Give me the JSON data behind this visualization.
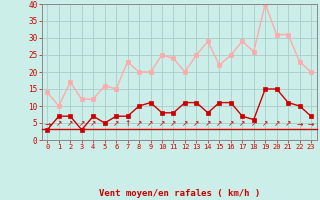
{
  "hours": [
    0,
    1,
    2,
    3,
    4,
    5,
    6,
    7,
    8,
    9,
    10,
    11,
    12,
    13,
    14,
    15,
    16,
    17,
    18,
    19,
    20,
    21,
    22,
    23
  ],
  "wind_avg": [
    3,
    7,
    7,
    3,
    7,
    5,
    7,
    7,
    10,
    11,
    8,
    8,
    11,
    11,
    8,
    11,
    11,
    7,
    6,
    15,
    15,
    11,
    10,
    7
  ],
  "wind_gust": [
    14,
    10,
    17,
    12,
    12,
    16,
    15,
    23,
    20,
    20,
    25,
    24,
    20,
    25,
    29,
    22,
    25,
    29,
    26,
    40,
    31,
    31,
    23,
    20
  ],
  "avg_color": "#cc0000",
  "gust_color": "#ffaaaa",
  "bg_color": "#cceee8",
  "grid_color": "#aacccc",
  "xlabel": "Vent moyen/en rafales ( km/h )",
  "xlabel_color": "#cc0000",
  "tick_color": "#cc0000",
  "ymin": 0,
  "ymax": 40,
  "yticks": [
    0,
    5,
    10,
    15,
    20,
    25,
    30,
    35,
    40
  ],
  "arrow_types": [
    "→",
    "↗",
    "↗",
    "↗",
    "↗",
    "↗",
    "↗",
    "↑",
    "↗",
    "↗",
    "↗",
    "↗",
    "↗",
    "↗",
    "↗",
    "↗",
    "↗",
    "↗",
    "↗",
    "↗",
    "↗",
    "↗",
    "→",
    "→"
  ]
}
